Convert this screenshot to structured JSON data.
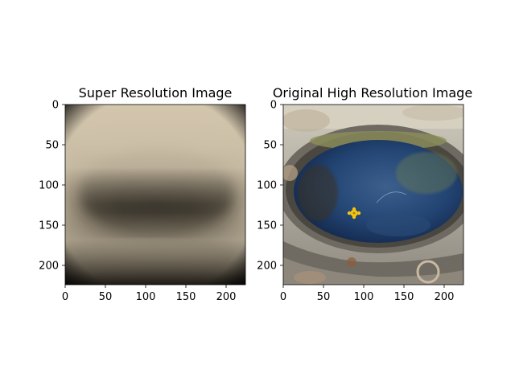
{
  "chart_data": [
    {
      "type": "image",
      "title": "Super Resolution Image",
      "image_size": [
        224,
        224
      ],
      "xlim": [
        0,
        224
      ],
      "ylim": [
        224,
        0
      ],
      "xticks": [
        0,
        50,
        100,
        150,
        200
      ],
      "yticks": [
        0,
        50,
        100,
        150,
        200
      ],
      "image_description": "blurry low-detail reconstruction of a rock pool in sepia/beige tones with a darker oval center"
    },
    {
      "type": "image",
      "title": "Original High Resolution Image",
      "image_size": [
        224,
        224
      ],
      "xlim": [
        0,
        224
      ],
      "ylim": [
        224,
        0
      ],
      "xticks": [
        0,
        50,
        100,
        150,
        200
      ],
      "yticks": [
        0,
        50,
        100,
        150,
        200
      ],
      "image_description": "photo of a round rock pool with clear blue water, seaweed, and a small yellow flower floating"
    }
  ],
  "colors": {
    "sr_light": "#cbbfa8",
    "sr_dark": "#221f18",
    "water": "#1f3a66",
    "water_light": "#4b6c94",
    "rock": "#c8c6c2",
    "rock_dark": "#5b5750",
    "weed": "#6a7a52",
    "flower": "#f2c511"
  }
}
